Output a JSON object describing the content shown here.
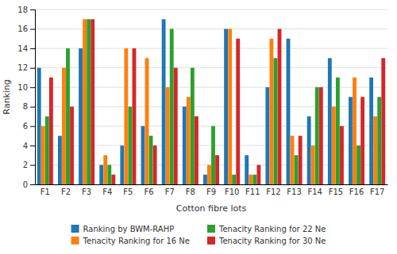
{
  "chart_data": {
    "type": "bar",
    "categories": [
      "F1",
      "F2",
      "F3",
      "F4",
      "F5",
      "F6",
      "F7",
      "F8",
      "F9",
      "F10",
      "F11",
      "F12",
      "F13",
      "F14",
      "F15",
      "F16",
      "F17"
    ],
    "series": [
      {
        "name": "Ranking by BWM-RAHP",
        "values": [
          12,
          5,
          14,
          2,
          4,
          6,
          17,
          8,
          1,
          16,
          3,
          10,
          15,
          7,
          13,
          9,
          11
        ]
      },
      {
        "name": "Tenacity Ranking for 16 Ne",
        "values": [
          6,
          12,
          17,
          3,
          14,
          13,
          10,
          9,
          2,
          16,
          1,
          15,
          5,
          4,
          8,
          11,
          7
        ]
      },
      {
        "name": "Tenacity Ranking for 22 Ne",
        "values": [
          7,
          14,
          17,
          2,
          8,
          5,
          16,
          12,
          6,
          1,
          1,
          13,
          3,
          10,
          11,
          4,
          9
        ]
      },
      {
        "name": "Tenacity Ranking for 30 Ne",
        "values": [
          11,
          8,
          17,
          1,
          14,
          4,
          12,
          7,
          3,
          15,
          2,
          16,
          5,
          10,
          6,
          9,
          13
        ]
      }
    ],
    "xlabel": "Cotton fibre lots",
    "ylabel": "Ranking",
    "ylim": [
      0,
      18
    ],
    "yticks": [
      0,
      2,
      4,
      6,
      8,
      10,
      12,
      14,
      16,
      18
    ],
    "grid": true,
    "legend": "bottom"
  }
}
